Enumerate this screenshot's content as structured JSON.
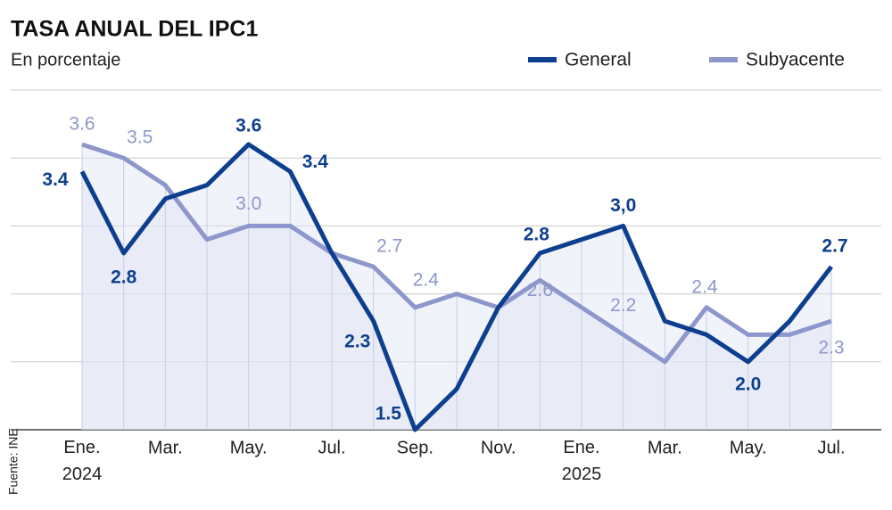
{
  "chart_data": {
    "type": "line",
    "title": "TASA ANUAL DEL IPC1",
    "subtitle": "En porcentaje",
    "source": "Fuente: INE",
    "categories": [
      "Ene. 2024",
      null,
      "Mar.",
      null,
      "May.",
      null,
      "Jul.",
      null,
      "Sep.",
      null,
      "Nov.",
      null,
      "Ene. 2025",
      null,
      "Mar.",
      null,
      "May.",
      null,
      "Jul."
    ],
    "series": [
      {
        "name": "General",
        "color": "#0d3f8f",
        "values": [
          3.4,
          2.8,
          3.2,
          3.3,
          3.6,
          3.4,
          2.8,
          2.3,
          1.5,
          1.8,
          2.4,
          2.8,
          2.9,
          3.0,
          2.3,
          2.2,
          2.0,
          2.3,
          2.7
        ],
        "value_labels": [
          "3.4",
          "2.8",
          null,
          null,
          "3.6",
          "3.4",
          null,
          "2.3",
          "1.5",
          null,
          null,
          "2.8",
          null,
          "3,0",
          null,
          null,
          "2.0",
          null,
          "2.7"
        ]
      },
      {
        "name": "Subyacente",
        "color": "#8e97cc",
        "values": [
          3.6,
          3.5,
          3.3,
          2.9,
          3.0,
          3.0,
          2.8,
          2.7,
          2.4,
          2.5,
          2.4,
          2.6,
          2.4,
          2.2,
          2.0,
          2.4,
          2.2,
          2.2,
          2.3
        ],
        "value_labels": [
          "3.6",
          "3.5",
          null,
          null,
          "3.0",
          null,
          null,
          "2.7",
          "2.4",
          null,
          null,
          "2.6",
          null,
          "2.2",
          null,
          "2.4",
          null,
          null,
          "2.3"
        ]
      }
    ],
    "ylim": [
      1.5,
      4.0
    ],
    "yticks": [
      1.5,
      2.0,
      2.5,
      3.0,
      3.5,
      4.0
    ],
    "grid": true,
    "legend": "top-right"
  }
}
